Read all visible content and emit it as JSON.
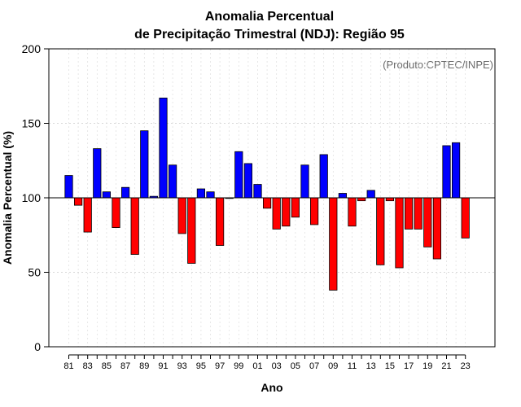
{
  "chart_data": {
    "type": "bar",
    "title_line1": "Anomalia Percentual",
    "title_line2": "de Precipitação Trimestral (NDJ): Região 95",
    "xlabel": "Ano",
    "ylabel": "Anomalia Percentual (%)",
    "credit": "(Produto:CPTEC/INPE)",
    "baseline": 100,
    "ylim": [
      0,
      200
    ],
    "yticks": [
      0,
      50,
      100,
      150,
      200
    ],
    "grid": true,
    "above_color": "#0000ff",
    "below_color": "#ff0000",
    "categories": [
      "81",
      "82",
      "83",
      "84",
      "85",
      "86",
      "87",
      "88",
      "89",
      "90",
      "91",
      "92",
      "93",
      "94",
      "95",
      "96",
      "97",
      "98",
      "99",
      "00",
      "01",
      "02",
      "03",
      "04",
      "05",
      "06",
      "07",
      "08",
      "09",
      "10",
      "11",
      "12",
      "13",
      "14",
      "15",
      "16",
      "17",
      "18",
      "19",
      "20",
      "21",
      "22",
      "23"
    ],
    "xtick_labels": [
      "81",
      "83",
      "85",
      "87",
      "89",
      "91",
      "93",
      "95",
      "97",
      "99",
      "01",
      "03",
      "05",
      "07",
      "09",
      "11",
      "13",
      "15",
      "17",
      "19",
      "21",
      "23"
    ],
    "values": [
      115,
      95,
      77,
      133,
      104,
      80,
      107,
      62,
      145,
      101,
      167,
      122,
      76,
      56,
      106,
      104,
      68,
      100,
      131,
      123,
      109,
      93,
      79,
      81,
      87,
      122,
      82,
      129,
      38,
      103,
      81,
      98,
      105,
      55,
      98,
      53,
      79,
      79,
      67,
      59,
      135,
      137,
      73
    ]
  }
}
